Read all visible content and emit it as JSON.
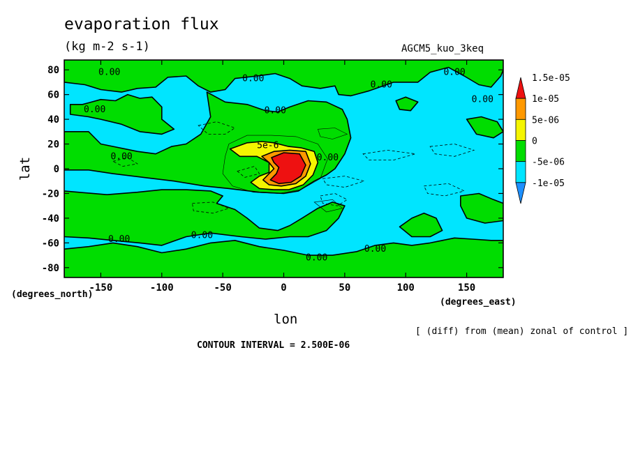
{
  "chart_data": {
    "type": "contour",
    "title": "evaporation flux",
    "subtitle": "(kg m-2 s-1)",
    "run_label": "AGCM5_kuo_3keq",
    "xlabel": "lon",
    "ylabel": "lat",
    "x_units": "(degrees_east)",
    "y_units": "(degrees_north)",
    "xlim": [
      -180,
      180
    ],
    "ylim": [
      -88,
      88
    ],
    "x_ticks": [
      -150,
      -100,
      -50,
      0,
      50,
      100,
      150
    ],
    "x_tick_labels": [
      "-150",
      "-100",
      "-50",
      "0",
      "50",
      "100",
      "150"
    ],
    "y_ticks": [
      -80,
      -60,
      -40,
      -20,
      0,
      20,
      40,
      60,
      80
    ],
    "y_tick_labels": [
      "-80",
      "-60",
      "-40",
      "-20",
      "0",
      "20",
      "40",
      "60",
      "80"
    ],
    "note": "[ (diff) from (mean) zonal of control ]",
    "contour_interval": "CONTOUR INTERVAL = 2.500E-06",
    "colorbar": {
      "levels": [
        -1e-05,
        -5e-06,
        0,
        5e-06,
        1e-05,
        1.5e-05
      ],
      "labels": [
        "-1e-05",
        "-5e-06",
        "0",
        "5e-06",
        "1e-05",
        "1.5e-05"
      ],
      "colors": [
        "#1e90ff",
        "#00e5ff",
        "#00dd00",
        "#f5f500",
        "#ff9900",
        "#ee1111"
      ]
    },
    "contour_labels": [
      {
        "lon": -143,
        "lat": 78,
        "text": "0.00"
      },
      {
        "lon": -25,
        "lat": 73,
        "text": "0.00"
      },
      {
        "lon": 80,
        "lat": 68,
        "text": "0.00"
      },
      {
        "lon": 140,
        "lat": 78,
        "text": "0.00"
      },
      {
        "lon": -155,
        "lat": 48,
        "text": "0.00"
      },
      {
        "lon": -7,
        "lat": 47,
        "text": "0.00"
      },
      {
        "lon": 163,
        "lat": 56,
        "text": "0.00"
      },
      {
        "lon": -133,
        "lat": 10,
        "text": "0.00"
      },
      {
        "lon": 36,
        "lat": 9,
        "text": "0.00"
      },
      {
        "lon": -13,
        "lat": 19,
        "text": "5e-6"
      },
      {
        "lon": -135,
        "lat": -57,
        "text": "0.00"
      },
      {
        "lon": -67,
        "lat": -54,
        "text": "0.00"
      },
      {
        "lon": 75,
        "lat": -65,
        "text": "0.00"
      },
      {
        "lon": 27,
        "lat": -72,
        "text": "0.00"
      }
    ],
    "regions": {
      "positive_0": [
        [
          [
            -180,
            88
          ],
          [
            -180,
            70
          ],
          [
            -163,
            68
          ],
          [
            -150,
            64
          ],
          [
            -133,
            62
          ],
          [
            -120,
            65
          ],
          [
            -105,
            66
          ],
          [
            -95,
            74
          ],
          [
            -80,
            75
          ],
          [
            -70,
            67
          ],
          [
            -60,
            62
          ],
          [
            -48,
            64
          ],
          [
            -40,
            73
          ],
          [
            -22,
            75
          ],
          [
            -7,
            77
          ],
          [
            5,
            73
          ],
          [
            15,
            67
          ],
          [
            30,
            65
          ],
          [
            42,
            67
          ],
          [
            45,
            60
          ],
          [
            55,
            59
          ],
          [
            70,
            63
          ],
          [
            90,
            70
          ],
          [
            110,
            70
          ],
          [
            120,
            78
          ],
          [
            135,
            82
          ],
          [
            148,
            75
          ],
          [
            160,
            68
          ],
          [
            170,
            66
          ],
          [
            178,
            75
          ],
          [
            180,
            80
          ],
          [
            180,
            88
          ]
        ],
        [
          [
            -175,
            52
          ],
          [
            -165,
            52
          ],
          [
            -150,
            56
          ],
          [
            -138,
            55
          ],
          [
            -128,
            60
          ],
          [
            -118,
            57
          ],
          [
            -108,
            58
          ],
          [
            -100,
            50
          ],
          [
            -100,
            40
          ],
          [
            -90,
            32
          ],
          [
            -100,
            28
          ],
          [
            -118,
            30
          ],
          [
            -133,
            36
          ],
          [
            -150,
            40
          ],
          [
            -160,
            42
          ],
          [
            -175,
            44
          ]
        ],
        [
          [
            -63,
            62
          ],
          [
            -48,
            54
          ],
          [
            -30,
            52
          ],
          [
            -15,
            47
          ],
          [
            -5,
            46
          ],
          [
            5,
            50
          ],
          [
            20,
            55
          ],
          [
            35,
            54
          ],
          [
            48,
            48
          ],
          [
            52,
            40
          ],
          [
            55,
            25
          ],
          [
            50,
            12
          ],
          [
            42,
            0
          ],
          [
            35,
            -5
          ],
          [
            25,
            -10
          ],
          [
            12,
            -18
          ],
          [
            0,
            -20
          ],
          [
            -20,
            -19
          ],
          [
            -45,
            -16
          ],
          [
            -65,
            -14
          ],
          [
            -90,
            -10
          ],
          [
            -115,
            -7
          ],
          [
            -140,
            -4
          ],
          [
            -160,
            -1
          ],
          [
            -180,
            -1
          ],
          [
            -180,
            30
          ],
          [
            -160,
            30
          ],
          [
            -150,
            20
          ],
          [
            -120,
            14
          ],
          [
            -105,
            12
          ],
          [
            -92,
            18
          ],
          [
            -80,
            20
          ],
          [
            -68,
            28
          ],
          [
            -60,
            42
          ]
        ],
        [
          [
            -180,
            -18
          ],
          [
            -145,
            -21
          ],
          [
            -120,
            -19
          ],
          [
            -100,
            -17
          ],
          [
            -80,
            -17
          ],
          [
            -60,
            -18
          ],
          [
            -50,
            -22
          ],
          [
            -55,
            -28
          ],
          [
            -40,
            -33
          ],
          [
            -30,
            -40
          ],
          [
            -20,
            -48
          ],
          [
            -5,
            -50
          ],
          [
            5,
            -46
          ],
          [
            15,
            -40
          ],
          [
            28,
            -32
          ],
          [
            40,
            -27
          ],
          [
            50,
            -30
          ],
          [
            45,
            -40
          ],
          [
            35,
            -50
          ],
          [
            20,
            -55
          ],
          [
            5,
            -55
          ],
          [
            -15,
            -57
          ],
          [
            -35,
            -55
          ],
          [
            -60,
            -52
          ],
          [
            -80,
            -55
          ],
          [
            -100,
            -62
          ],
          [
            -118,
            -60
          ],
          [
            -140,
            -58
          ],
          [
            -160,
            -56
          ],
          [
            -180,
            -55
          ]
        ],
        [
          [
            -180,
            -65
          ],
          [
            -160,
            -63
          ],
          [
            -140,
            -60
          ],
          [
            -120,
            -63
          ],
          [
            -100,
            -68
          ],
          [
            -80,
            -65
          ],
          [
            -60,
            -60
          ],
          [
            -40,
            -58
          ],
          [
            -20,
            -63
          ],
          [
            0,
            -66
          ],
          [
            20,
            -70
          ],
          [
            40,
            -70
          ],
          [
            60,
            -67
          ],
          [
            75,
            -62
          ],
          [
            90,
            -60
          ],
          [
            105,
            -62
          ],
          [
            120,
            -60
          ],
          [
            140,
            -56
          ],
          [
            155,
            -57
          ],
          [
            170,
            -58
          ],
          [
            180,
            -58
          ],
          [
            180,
            -88
          ],
          [
            -180,
            -88
          ]
        ],
        [
          [
            95,
            -47
          ],
          [
            105,
            -40
          ],
          [
            115,
            -36
          ],
          [
            125,
            -40
          ],
          [
            130,
            -50
          ],
          [
            120,
            -55
          ],
          [
            105,
            -55
          ]
        ],
        [
          [
            145,
            -22
          ],
          [
            160,
            -20
          ],
          [
            172,
            -25
          ],
          [
            180,
            -28
          ],
          [
            180,
            -42
          ],
          [
            165,
            -44
          ],
          [
            150,
            -40
          ],
          [
            145,
            -30
          ]
        ],
        [
          [
            92,
            55
          ],
          [
            100,
            58
          ],
          [
            110,
            54
          ],
          [
            104,
            47
          ],
          [
            95,
            48
          ]
        ],
        [
          [
            150,
            40
          ],
          [
            162,
            42
          ],
          [
            175,
            38
          ],
          [
            180,
            30
          ],
          [
            172,
            25
          ],
          [
            158,
            28
          ]
        ]
      ],
      "positive_5e-06": [
        [
          [
            -44,
            16
          ],
          [
            -30,
            21
          ],
          [
            -18,
            22
          ],
          [
            -8,
            21
          ],
          [
            4,
            18
          ],
          [
            14,
            17
          ],
          [
            25,
            14
          ],
          [
            28,
            5
          ],
          [
            24,
            -5
          ],
          [
            16,
            -13
          ],
          [
            4,
            -17
          ],
          [
            -8,
            -17
          ],
          [
            -20,
            -16
          ],
          [
            -27,
            -11
          ],
          [
            -20,
            -6
          ],
          [
            -12,
            -3
          ],
          [
            -12,
            5
          ],
          [
            -22,
            10
          ],
          [
            -36,
            10
          ]
        ]
      ],
      "positive_1e-05": [
        [
          [
            -18,
            10
          ],
          [
            -8,
            14
          ],
          [
            5,
            15
          ],
          [
            18,
            14
          ],
          [
            22,
            4
          ],
          [
            18,
            -6
          ],
          [
            10,
            -12
          ],
          [
            -2,
            -14
          ],
          [
            -12,
            -13
          ],
          [
            -17,
            -9
          ],
          [
            -12,
            -4
          ],
          [
            -8,
            0
          ],
          [
            -12,
            5
          ]
        ]
      ],
      "positive_1.5e-05": [
        [
          [
            -10,
            9
          ],
          [
            0,
            13
          ],
          [
            13,
            12
          ],
          [
            18,
            3
          ],
          [
            14,
            -6
          ],
          [
            6,
            -11
          ],
          [
            -4,
            -12
          ],
          [
            -11,
            -9
          ],
          [
            -6,
            -4
          ],
          [
            -4,
            1
          ],
          [
            -8,
            5
          ]
        ]
      ]
    },
    "negative_dashed_contours": [
      [
        [
          -70,
          35
        ],
        [
          -55,
          38
        ],
        [
          -40,
          33
        ],
        [
          -48,
          28
        ],
        [
          -62,
          28
        ]
      ],
      [
        [
          -75,
          -28
        ],
        [
          -58,
          -27
        ],
        [
          -45,
          -32
        ],
        [
          -58,
          -36
        ],
        [
          -74,
          -34
        ]
      ],
      [
        [
          30,
          -22
        ],
        [
          42,
          -20
        ],
        [
          52,
          -25
        ],
        [
          44,
          -30
        ],
        [
          32,
          -28
        ]
      ],
      [
        [
          32,
          -8
        ],
        [
          50,
          -6
        ],
        [
          66,
          -10
        ],
        [
          50,
          -15
        ],
        [
          35,
          -13
        ]
      ],
      [
        [
          65,
          12
        ],
        [
          85,
          15
        ],
        [
          108,
          12
        ],
        [
          90,
          7
        ],
        [
          70,
          7
        ]
      ],
      [
        [
          120,
          18
        ],
        [
          140,
          20
        ],
        [
          156,
          15
        ],
        [
          140,
          10
        ],
        [
          124,
          12
        ]
      ],
      [
        [
          115,
          -14
        ],
        [
          135,
          -12
        ],
        [
          148,
          -18
        ],
        [
          132,
          -22
        ],
        [
          118,
          -20
        ]
      ],
      [
        [
          -140,
          6
        ],
        [
          -128,
          9
        ],
        [
          -120,
          4
        ],
        [
          -132,
          2
        ]
      ],
      [
        [
          -38,
          -2
        ],
        [
          -24,
          2
        ],
        [
          -20,
          -4
        ],
        [
          -32,
          -7
        ]
      ]
    ],
    "thin_positive_contours": [
      [
        [
          -45,
          20
        ],
        [
          -30,
          27
        ],
        [
          -10,
          27
        ],
        [
          10,
          26
        ],
        [
          28,
          20
        ],
        [
          36,
          8
        ],
        [
          30,
          -8
        ],
        [
          14,
          -17
        ],
        [
          -5,
          -20
        ],
        [
          -25,
          -19
        ],
        [
          -42,
          -14
        ],
        [
          -50,
          -4
        ],
        [
          -48,
          10
        ]
      ],
      [
        [
          28,
          32
        ],
        [
          42,
          33
        ],
        [
          52,
          28
        ],
        [
          40,
          24
        ],
        [
          30,
          26
        ]
      ],
      [
        [
          25,
          -27
        ],
        [
          40,
          -25
        ],
        [
          48,
          -32
        ],
        [
          35,
          -35
        ]
      ]
    ]
  }
}
